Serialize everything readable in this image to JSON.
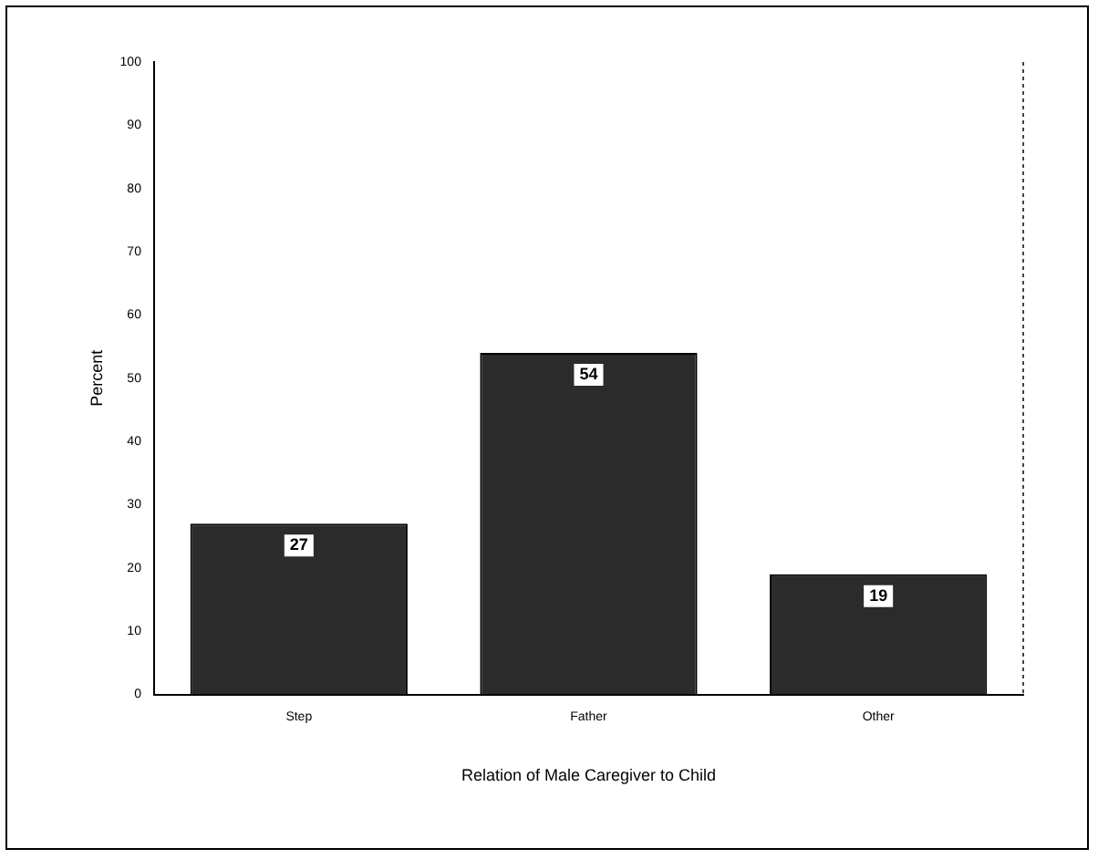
{
  "chart_data": {
    "type": "bar",
    "xlabel": "Relation of Male Caregiver to Child",
    "ylabel": "Percent",
    "categories": [
      "Step",
      "Father",
      "Other"
    ],
    "values": [
      27,
      54,
      19
    ],
    "color": "#2b2b2b",
    "data_labels": true,
    "ylim": [
      0,
      100
    ],
    "yticks": [
      0,
      10,
      20,
      30,
      40,
      50,
      60,
      70,
      80,
      90,
      100
    ],
    "grid": false,
    "legend": false
  }
}
